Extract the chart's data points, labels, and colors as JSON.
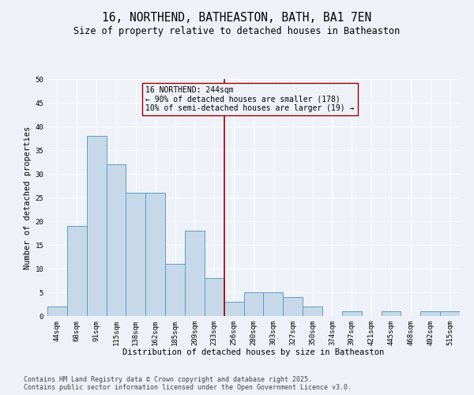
{
  "title": "16, NORTHEND, BATHEASTON, BATH, BA1 7EN",
  "subtitle": "Size of property relative to detached houses in Batheaston",
  "xlabel": "Distribution of detached houses by size in Batheaston",
  "ylabel": "Number of detached properties",
  "footer_line1": "Contains HM Land Registry data © Crown copyright and database right 2025.",
  "footer_line2": "Contains public sector information licensed under the Open Government Licence v3.0.",
  "categories": [
    "44sqm",
    "68sqm",
    "91sqm",
    "115sqm",
    "138sqm",
    "162sqm",
    "185sqm",
    "209sqm",
    "233sqm",
    "256sqm",
    "280sqm",
    "303sqm",
    "327sqm",
    "350sqm",
    "374sqm",
    "397sqm",
    "421sqm",
    "445sqm",
    "468sqm",
    "492sqm",
    "515sqm"
  ],
  "values": [
    2,
    19,
    38,
    32,
    26,
    26,
    11,
    18,
    8,
    3,
    5,
    5,
    4,
    2,
    0,
    1,
    0,
    1,
    0,
    1,
    1
  ],
  "bar_color": "#c7d9e8",
  "bar_edge_color": "#5a9ec8",
  "vline_x": 8.5,
  "vline_color": "#990000",
  "annotation_text": "16 NORTHEND: 244sqm\n← 90% of detached houses are smaller (178)\n10% of semi-detached houses are larger (19) →",
  "annotation_box_color": "#990000",
  "ylim": [
    0,
    50
  ],
  "yticks": [
    0,
    5,
    10,
    15,
    20,
    25,
    30,
    35,
    40,
    45,
    50
  ],
  "bg_color": "#eef2f8",
  "grid_color": "#ffffff",
  "title_fontsize": 10.5,
  "subtitle_fontsize": 8.5,
  "axis_label_fontsize": 7.5,
  "tick_fontsize": 6.5,
  "footer_fontsize": 6.0,
  "ann_fontsize": 7.0
}
